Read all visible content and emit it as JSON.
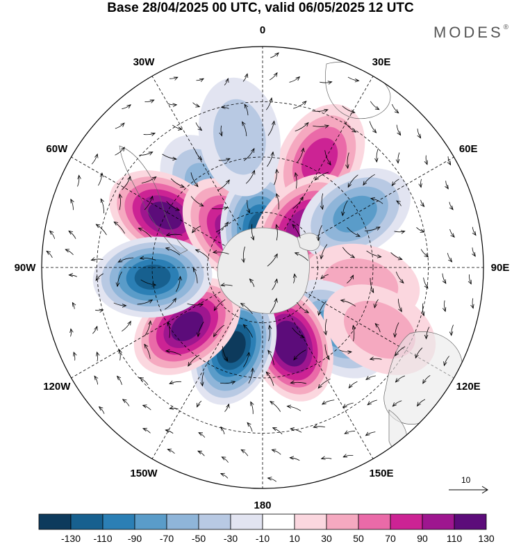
{
  "title": "Base 28/04/2025 00 UTC, valid 06/05/2025 12 UTC",
  "logo": "MODES",
  "logo_mark": "®",
  "longitude_labels": [
    {
      "lon": 0,
      "text": "0"
    },
    {
      "lon": 30,
      "text": "30E"
    },
    {
      "lon": 60,
      "text": "60E"
    },
    {
      "lon": 90,
      "text": "90E"
    },
    {
      "lon": 120,
      "text": "120E"
    },
    {
      "lon": 150,
      "text": "150E"
    },
    {
      "lon": 180,
      "text": "180"
    },
    {
      "lon": -150,
      "text": "150W"
    },
    {
      "lon": -120,
      "text": "120W"
    },
    {
      "lon": -90,
      "text": "90W"
    },
    {
      "lon": -60,
      "text": "60W"
    },
    {
      "lon": -30,
      "text": "30W"
    }
  ],
  "reference_vector": {
    "label": "10"
  },
  "colorbar": {
    "labels": [
      "-130",
      "-110",
      "-90",
      "-70",
      "-50",
      "-30",
      "-10",
      "10",
      "30",
      "50",
      "70",
      "90",
      "110",
      "130"
    ],
    "colors": [
      "#0d3a5c",
      "#17608f",
      "#2b7fb5",
      "#5a9cc9",
      "#8fb5d9",
      "#b8c9e3",
      "#e2e4f1",
      "#ffffff",
      "#fbd7df",
      "#f5a9c0",
      "#ea6aa8",
      "#cc2394",
      "#9e168f",
      "#5c0c7a"
    ]
  },
  "anomaly_centers": [
    {
      "lon": -35,
      "colat": 26,
      "level": -50
    },
    {
      "lon": -62,
      "colat": 30,
      "level": 110
    },
    {
      "lon": -40,
      "colat": 13,
      "level": 90
    },
    {
      "lon": -3,
      "colat": 10,
      "level": -110
    },
    {
      "lon": 28,
      "colat": 33,
      "level": 70
    },
    {
      "lon": 44,
      "colat": 16,
      "level": 90
    },
    {
      "lon": 60,
      "colat": 29,
      "level": -70
    },
    {
      "lon": 100,
      "colat": 27,
      "level": 30
    },
    {
      "lon": 130,
      "colat": 26,
      "level": -70
    },
    {
      "lon": 160,
      "colat": 22,
      "level": 130
    },
    {
      "lon": -160,
      "colat": 23,
      "level": -130
    },
    {
      "lon": -128,
      "colat": 26,
      "level": 110
    },
    {
      "lon": -95,
      "colat": 30,
      "level": -110
    },
    {
      "lon": 118,
      "colat": 36,
      "level": 30
    },
    {
      "lon": -10,
      "colat": 36,
      "level": -30
    }
  ]
}
